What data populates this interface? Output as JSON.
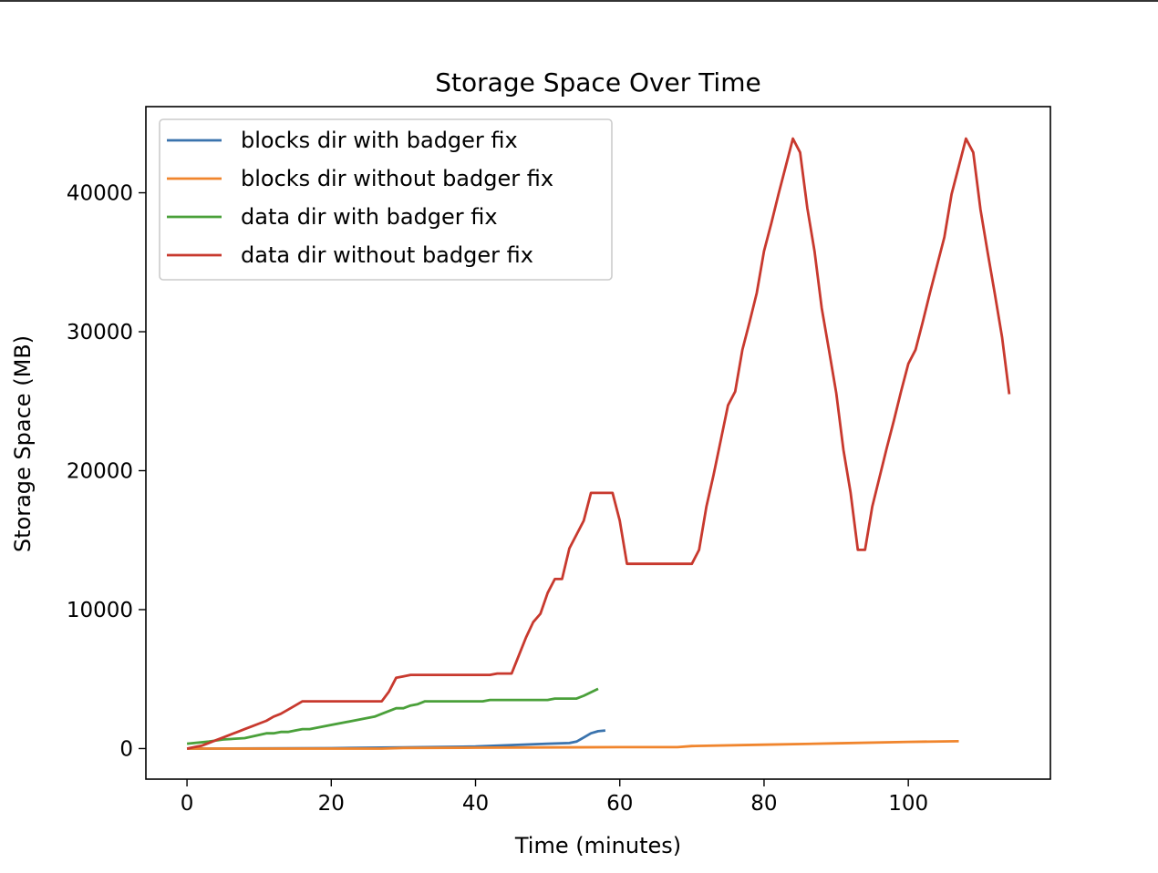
{
  "chart_data": {
    "type": "line",
    "title": "Storage Space Over Time",
    "xlabel": "Time (minutes)",
    "ylabel": "Storage Space (MB)",
    "xlim": [
      -5.7,
      119.7
    ],
    "ylim": [
      -2200,
      46200
    ],
    "xticks": [
      0,
      20,
      40,
      60,
      80,
      100
    ],
    "yticks": [
      0,
      10000,
      20000,
      30000,
      40000
    ],
    "grid": false,
    "legend_position": "upper-left",
    "series": [
      {
        "name": "blocks dir with badger fix",
        "color": "#3a73ad",
        "x": [
          0,
          10,
          20,
          30,
          40,
          45,
          50,
          53,
          54,
          55,
          56,
          57,
          58
        ],
        "y": [
          0,
          10,
          30,
          80,
          150,
          250,
          350,
          400,
          500,
          800,
          1100,
          1250,
          1300
        ]
      },
      {
        "name": "blocks dir without badger fix",
        "color": "#f0852d",
        "x": [
          0,
          10,
          20,
          27,
          30,
          40,
          50,
          60,
          68,
          70,
          80,
          90,
          100,
          107
        ],
        "y": [
          0,
          0,
          0,
          0,
          40,
          60,
          80,
          100,
          100,
          180,
          280,
          380,
          480,
          530
        ]
      },
      {
        "name": "data dir with badger fix",
        "color": "#4aa03a",
        "x": [
          0,
          3,
          5,
          8,
          11,
          12,
          13,
          14,
          15,
          16,
          17,
          20,
          23,
          26,
          27,
          29,
          30,
          31,
          32,
          33,
          34,
          36,
          38,
          41,
          42,
          44,
          46,
          48,
          50,
          51,
          53,
          54,
          55,
          57
        ],
        "y": [
          350,
          500,
          650,
          750,
          1100,
          1100,
          1200,
          1200,
          1300,
          1400,
          1400,
          1700,
          2000,
          2300,
          2500,
          2900,
          2900,
          3100,
          3200,
          3400,
          3400,
          3400,
          3400,
          3400,
          3500,
          3500,
          3500,
          3500,
          3500,
          3600,
          3600,
          3600,
          3800,
          4300
        ]
      },
      {
        "name": "data dir without badger fix",
        "color": "#c8392e",
        "x": [
          0,
          1,
          2,
          3,
          4,
          5,
          6,
          7,
          8,
          9,
          10,
          11,
          12,
          13,
          14,
          15,
          16,
          17,
          18,
          20,
          22,
          24,
          26,
          27,
          28,
          29,
          30,
          31,
          32,
          35,
          38,
          40,
          42,
          43,
          44,
          45,
          46,
          47,
          48,
          49,
          50,
          51,
          52,
          53,
          54,
          55,
          56,
          57,
          58,
          59,
          60,
          61,
          62,
          65,
          68,
          70,
          71,
          72,
          73,
          74,
          75,
          76,
          77,
          78,
          79,
          80,
          81,
          82,
          83,
          84,
          85,
          86,
          87,
          88,
          89,
          90,
          91,
          92,
          93,
          94,
          95,
          96,
          97,
          98,
          99,
          100,
          101,
          102,
          103,
          104,
          105,
          106,
          107,
          108,
          109,
          110,
          111,
          112,
          113,
          114
        ],
        "y": [
          0,
          100,
          200,
          400,
          600,
          800,
          1000,
          1200,
          1400,
          1600,
          1800,
          2000,
          2300,
          2500,
          2800,
          3100,
          3400,
          3400,
          3400,
          3400,
          3400,
          3400,
          3400,
          3400,
          4100,
          5100,
          5200,
          5300,
          5300,
          5300,
          5300,
          5300,
          5300,
          5400,
          5400,
          5400,
          6700,
          8000,
          9100,
          9700,
          11200,
          12200,
          12200,
          14400,
          15400,
          16400,
          18400,
          18400,
          18400,
          18400,
          16400,
          13300,
          13300,
          13300,
          13300,
          13300,
          14300,
          17400,
          19700,
          22200,
          24700,
          25700,
          28700,
          30700,
          32800,
          35800,
          37800,
          39900,
          41900,
          43900,
          42900,
          38900,
          35800,
          31700,
          28700,
          25600,
          21500,
          18400,
          14300,
          14300,
          17400,
          19500,
          21600,
          23600,
          25700,
          27700,
          28700,
          30700,
          32800,
          34800,
          36800,
          39900,
          41900,
          43900,
          42900,
          38800,
          35700,
          32700,
          29600,
          25500
        ]
      }
    ]
  }
}
